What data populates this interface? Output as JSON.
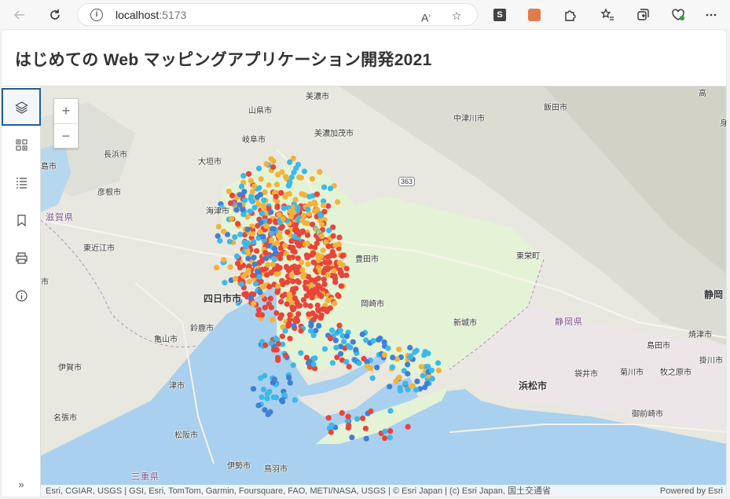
{
  "browser": {
    "url_host": "localhost",
    "url_port": ":5173"
  },
  "app": {
    "title": "はじめての Web マッピングアプリケーション開発2021"
  },
  "map": {
    "zoom_in": "+",
    "zoom_out": "−",
    "collapse": "»",
    "labels": {
      "takayama": "高",
      "mi": "身",
      "mino": "美濃市",
      "yamagata": "山県市",
      "iida": "飯田市",
      "gifu": "岐阜市",
      "minokamo": "美濃加茂市",
      "nakatsugawa": "中津川市",
      "nagahama": "長浜市",
      "ogaki": "大垣市",
      "shima": "島市",
      "hikone": "彦根市",
      "shiga": "滋賀県",
      "higashiomi": "東近江市",
      "yokkaichi": "四日市市",
      "suzuka": "鈴鹿市",
      "kameyama": "亀山市",
      "iga": "伊賀市",
      "tsu": "津市",
      "nabari": "名張市",
      "matsusaka": "松阪市",
      "ise": "伊勢市",
      "toba": "鳥羽市",
      "mie": "三重県",
      "shizuoka": "静岡",
      "shizuoka_pref": "静岡県",
      "yaizu": "焼津市",
      "shimada": "島田市",
      "kakegawa": "掛川市",
      "fukuroi": "袋井市",
      "kikugawa": "菊川市",
      "makinohara": "牧之原市",
      "hamamatsu": "浜松市",
      "omaezaki": "御前崎市",
      "shinshiro": "新城市",
      "toyota": "豊田市",
      "okazaki": "岡崎市",
      "toei": "東栄町",
      "route": "363",
      "ama": "海津市",
      "shi": "市"
    },
    "attribution": "Esri, CGIAR, USGS | GSI, Esri, TomTom, Garmin, Foursquare, FAO, METI/NASA, USGS | © Esri Japan | (c) Esri Japan, 国土交通省",
    "powered_by": "Powered by Esri"
  }
}
